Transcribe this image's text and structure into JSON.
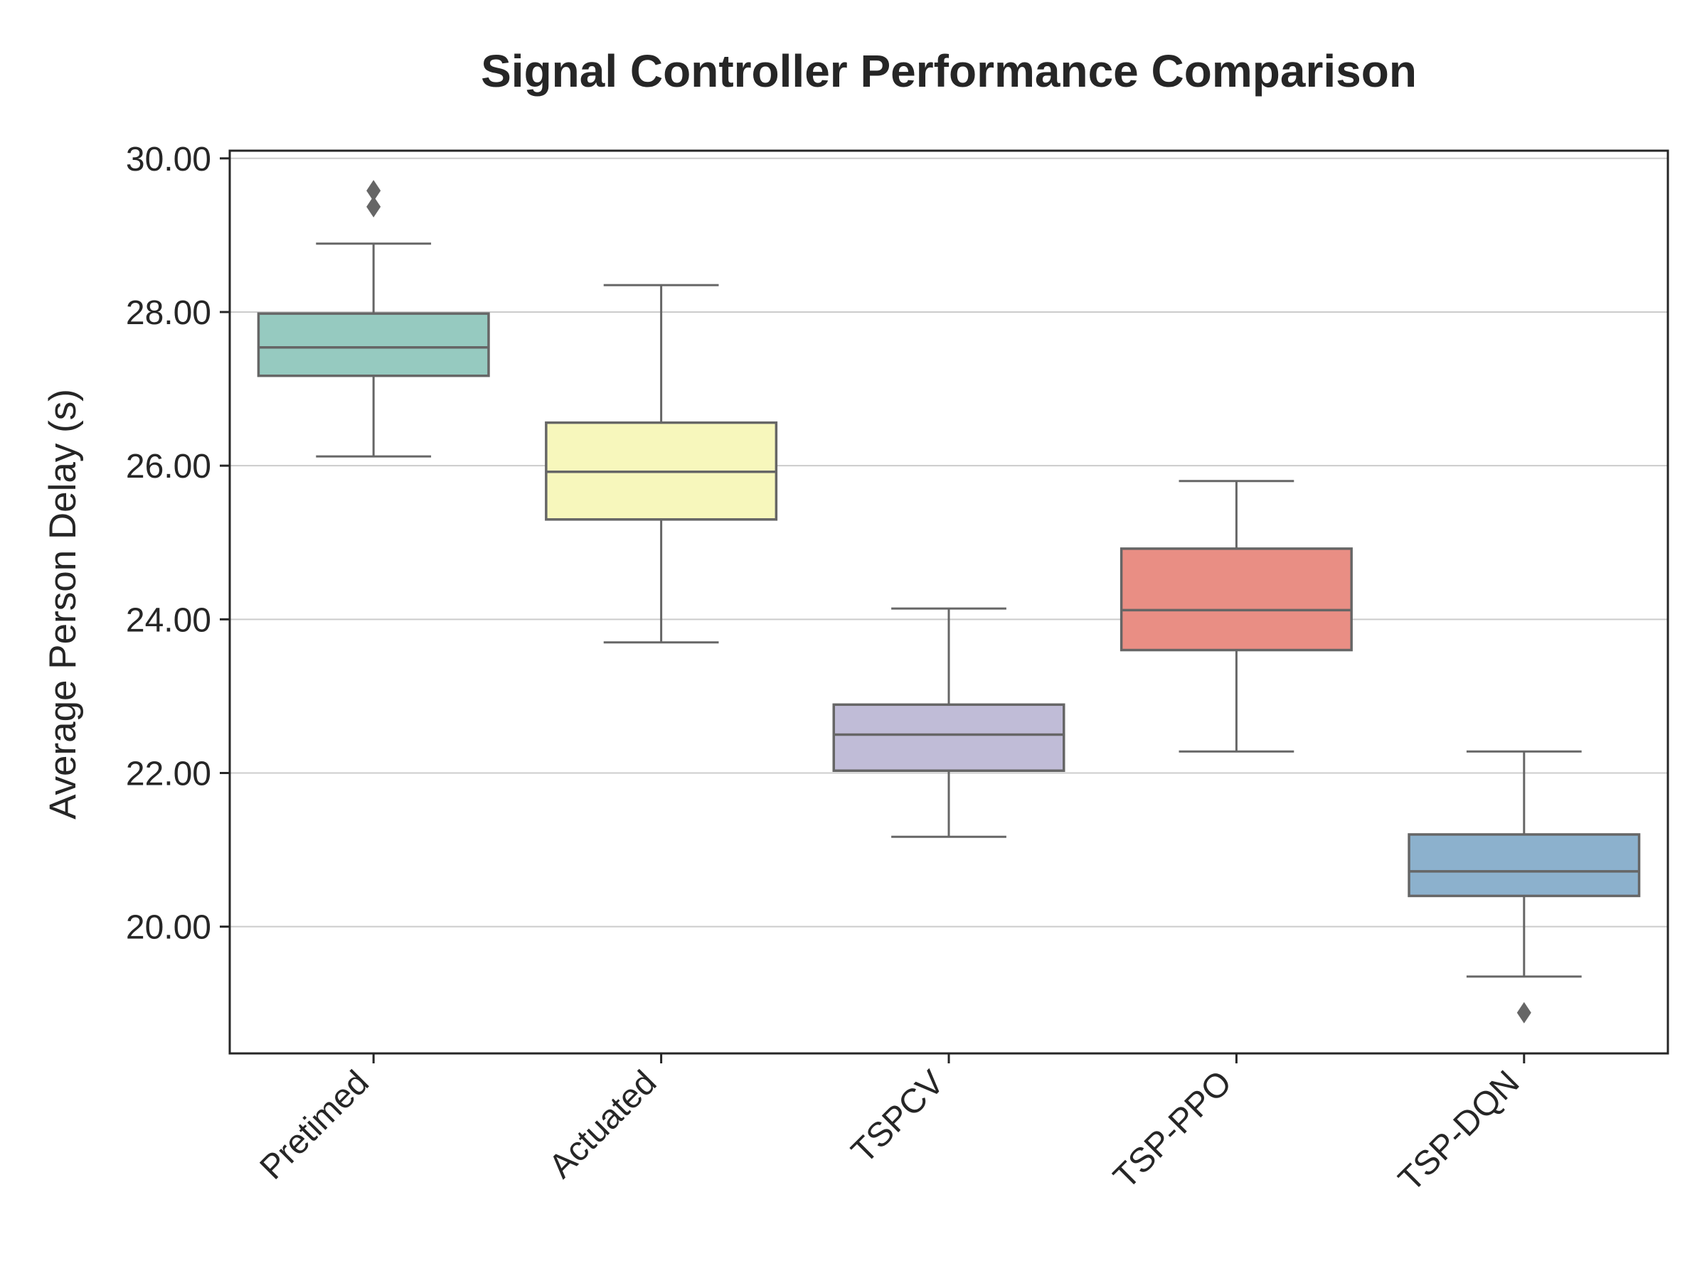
{
  "chart_data": {
    "type": "box",
    "title": "Signal Controller Performance Comparison",
    "xlabel": "",
    "ylabel": "Average Person Delay (s)",
    "ylim": [
      18.35,
      30.1
    ],
    "yticks": [
      20.0,
      22.0,
      24.0,
      26.0,
      28.0,
      30.0
    ],
    "ytick_labels": [
      "20.00",
      "22.00",
      "24.00",
      "26.00",
      "28.00",
      "30.00"
    ],
    "grid": "horizontal",
    "categories": [
      "Pretimed",
      "Actuated",
      "TSPCV",
      "TSP-PPO",
      "TSP-DQN"
    ],
    "boxes": [
      {
        "category": "Pretimed",
        "whisker_low": 26.12,
        "q1": 27.17,
        "median": 27.54,
        "q3": 27.98,
        "whisker_high": 28.89,
        "outliers": [
          29.37,
          29.58
        ],
        "color": "#96cac0"
      },
      {
        "category": "Actuated",
        "whisker_low": 23.7,
        "q1": 25.3,
        "median": 25.92,
        "q3": 26.56,
        "whisker_high": 28.35,
        "outliers": [],
        "color": "#f7f7bc"
      },
      {
        "category": "TSPCV",
        "whisker_low": 21.17,
        "q1": 22.03,
        "median": 22.5,
        "q3": 22.89,
        "whisker_high": 24.14,
        "outliers": [],
        "color": "#c0bcd7"
      },
      {
        "category": "TSP-PPO",
        "whisker_low": 22.28,
        "q1": 23.6,
        "median": 24.12,
        "q3": 24.92,
        "whisker_high": 25.8,
        "outliers": [],
        "color": "#e98e84"
      },
      {
        "category": "TSP-DQN",
        "whisker_low": 19.35,
        "q1": 20.4,
        "median": 20.72,
        "q3": 21.2,
        "whisker_high": 22.28,
        "outliers": [
          18.88
        ],
        "color": "#8cb1cd"
      }
    ],
    "line_color": "#666666"
  }
}
